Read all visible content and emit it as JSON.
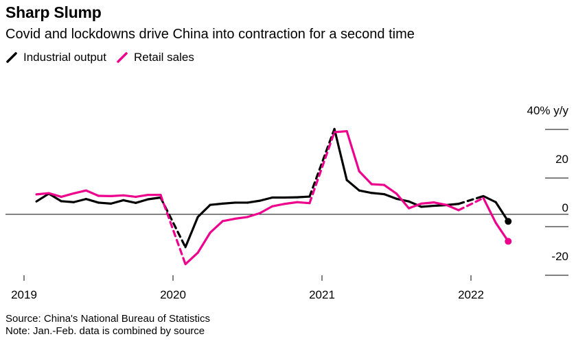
{
  "title": "Sharp Slump",
  "subtitle": "Covid and lockdowns drive China into contraction for a second time",
  "legend": [
    {
      "label": "Industrial output",
      "color": "#000000"
    },
    {
      "label": "Retail sales",
      "color": "#ec008c"
    }
  ],
  "source": "Source: China's National Bureau of Statistics",
  "note": "Note: Jan.-Feb. data is combined by source",
  "chart_data": {
    "type": "line",
    "ylabel": "",
    "y_unit": "40% y/y",
    "ylim": [
      -25,
      45
    ],
    "yticks": [
      -20,
      0,
      20,
      40
    ],
    "ytick_labels": [
      "-20",
      "0",
      "20",
      "40% y/y"
    ],
    "xticks": [
      2019,
      2020,
      2021,
      2022
    ],
    "xtick_labels": [
      "2019",
      "2020",
      "2021",
      "2022"
    ],
    "grid": false,
    "legend_position": "top-left",
    "series": [
      {
        "name": "Industrial output",
        "color": "#000000",
        "dashed_spans": "Jan.-Feb. combined",
        "points": [
          {
            "x": "2019-02",
            "y": 5.3
          },
          {
            "x": "2019-03",
            "y": 8.5
          },
          {
            "x": "2019-04",
            "y": 5.4
          },
          {
            "x": "2019-05",
            "y": 5.0
          },
          {
            "x": "2019-06",
            "y": 6.3
          },
          {
            "x": "2019-07",
            "y": 4.8
          },
          {
            "x": "2019-08",
            "y": 4.4
          },
          {
            "x": "2019-09",
            "y": 5.8
          },
          {
            "x": "2019-10",
            "y": 4.7
          },
          {
            "x": "2019-11",
            "y": 6.2
          },
          {
            "x": "2019-12",
            "y": 6.9
          },
          {
            "x": "2020-02",
            "y": -13.5
          },
          {
            "x": "2020-03",
            "y": -1.1
          },
          {
            "x": "2020-04",
            "y": 3.9
          },
          {
            "x": "2020-05",
            "y": 4.4
          },
          {
            "x": "2020-06",
            "y": 4.8
          },
          {
            "x": "2020-07",
            "y": 4.8
          },
          {
            "x": "2020-08",
            "y": 5.6
          },
          {
            "x": "2020-09",
            "y": 6.9
          },
          {
            "x": "2020-10",
            "y": 6.9
          },
          {
            "x": "2020-11",
            "y": 7.0
          },
          {
            "x": "2020-12",
            "y": 7.3
          },
          {
            "x": "2021-02",
            "y": 35.1
          },
          {
            "x": "2021-03",
            "y": 14.1
          },
          {
            "x": "2021-04",
            "y": 9.8
          },
          {
            "x": "2021-05",
            "y": 8.8
          },
          {
            "x": "2021-06",
            "y": 8.3
          },
          {
            "x": "2021-07",
            "y": 6.4
          },
          {
            "x": "2021-08",
            "y": 5.3
          },
          {
            "x": "2021-09",
            "y": 3.1
          },
          {
            "x": "2021-10",
            "y": 3.5
          },
          {
            "x": "2021-11",
            "y": 3.8
          },
          {
            "x": "2021-12",
            "y": 4.3
          },
          {
            "x": "2022-02",
            "y": 7.5
          },
          {
            "x": "2022-03",
            "y": 5.0
          },
          {
            "x": "2022-04",
            "y": -2.9
          }
        ]
      },
      {
        "name": "Retail sales",
        "color": "#ec008c",
        "dashed_spans": "Jan.-Feb. combined",
        "points": [
          {
            "x": "2019-02",
            "y": 8.2
          },
          {
            "x": "2019-03",
            "y": 8.7
          },
          {
            "x": "2019-04",
            "y": 7.2
          },
          {
            "x": "2019-05",
            "y": 8.6
          },
          {
            "x": "2019-06",
            "y": 9.8
          },
          {
            "x": "2019-07",
            "y": 7.6
          },
          {
            "x": "2019-08",
            "y": 7.5
          },
          {
            "x": "2019-09",
            "y": 7.8
          },
          {
            "x": "2019-10",
            "y": 7.2
          },
          {
            "x": "2019-11",
            "y": 8.0
          },
          {
            "x": "2019-12",
            "y": 8.0
          },
          {
            "x": "2020-02",
            "y": -20.5
          },
          {
            "x": "2020-03",
            "y": -15.8
          },
          {
            "x": "2020-04",
            "y": -7.5
          },
          {
            "x": "2020-05",
            "y": -2.8
          },
          {
            "x": "2020-06",
            "y": -1.8
          },
          {
            "x": "2020-07",
            "y": -1.1
          },
          {
            "x": "2020-08",
            "y": 0.5
          },
          {
            "x": "2020-09",
            "y": 3.3
          },
          {
            "x": "2020-10",
            "y": 4.3
          },
          {
            "x": "2020-11",
            "y": 5.0
          },
          {
            "x": "2020-12",
            "y": 4.6
          },
          {
            "x": "2021-02",
            "y": 33.8
          },
          {
            "x": "2021-03",
            "y": 34.2
          },
          {
            "x": "2021-04",
            "y": 17.7
          },
          {
            "x": "2021-05",
            "y": 12.4
          },
          {
            "x": "2021-06",
            "y": 12.1
          },
          {
            "x": "2021-07",
            "y": 8.5
          },
          {
            "x": "2021-08",
            "y": 2.5
          },
          {
            "x": "2021-09",
            "y": 4.4
          },
          {
            "x": "2021-10",
            "y": 4.9
          },
          {
            "x": "2021-11",
            "y": 3.9
          },
          {
            "x": "2021-12",
            "y": 1.7
          },
          {
            "x": "2022-02",
            "y": 6.7
          },
          {
            "x": "2022-03",
            "y": -3.5
          },
          {
            "x": "2022-04",
            "y": -11.1
          }
        ]
      }
    ]
  }
}
